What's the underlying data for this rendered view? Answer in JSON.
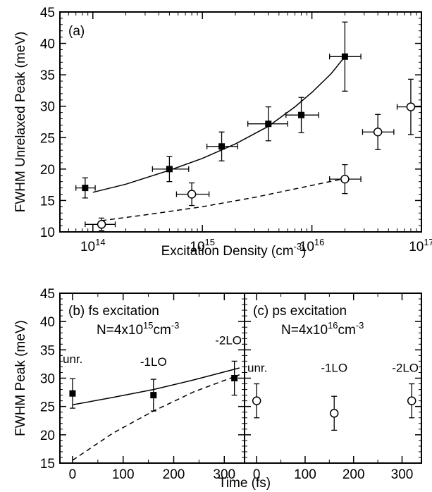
{
  "chart_data": [
    {
      "type": "scatter",
      "panel_label": "(a)",
      "xlabel": "Excitation Density (cm⁻³)",
      "ylabel": "FWHM Unrelaxed Peak (meV)",
      "xscale": "log",
      "xlim": [
        50000000000000.0,
        1e+17
      ],
      "ylim": [
        10,
        45
      ],
      "xticks": [
        {
          "value": 100000000000000.0,
          "base": "10",
          "exp": "14"
        },
        {
          "value": 1000000000000000.0,
          "base": "10",
          "exp": "15"
        },
        {
          "value": 1e+16,
          "base": "10",
          "exp": "16"
        },
        {
          "value": 1e+17,
          "base": "10",
          "exp": "17"
        }
      ],
      "yticks": [
        10,
        15,
        20,
        25,
        30,
        35,
        40,
        45
      ],
      "series": [
        {
          "marker": "filled-square",
          "points": [
            {
              "x": 85000000000000.0,
              "y": 17.0,
              "xerr": [
                70000000000000.0,
                105000000000000.0
              ],
              "yerr": 1.6
            },
            {
              "x": 500000000000000.0,
              "y": 20.0,
              "xerr": [
                350000000000000.0,
                750000000000000.0
              ],
              "yerr": 2.0
            },
            {
              "x": 1500000000000000.0,
              "y": 23.6,
              "xerr": [
                1100000000000000.0,
                2100000000000000.0
              ],
              "yerr": 2.3
            },
            {
              "x": 4000000000000000.0,
              "y": 27.2,
              "xerr": [
                2600000000000000.0,
                6000000000000000.0
              ],
              "yerr": 2.7
            },
            {
              "x": 8000000000000000.0,
              "y": 28.6,
              "xerr": [
                5800000000000000.0,
                1.15e+16
              ],
              "yerr": 2.8
            },
            {
              "x": 2e+16,
              "y": 37.9,
              "xerr": [
                1.45e+16,
                2.8e+16
              ],
              "yerr": 5.5
            }
          ]
        },
        {
          "marker": "open-circle",
          "points": [
            {
              "x": 120000000000000.0,
              "y": 11.2,
              "xerr": [
                85000000000000.0,
                160000000000000.0
              ],
              "yerr": 1.0
            },
            {
              "x": 800000000000000.0,
              "y": 16.0,
              "xerr": [
                580000000000000.0,
                1150000000000000.0
              ],
              "yerr": 1.8
            },
            {
              "x": 2e+16,
              "y": 18.4,
              "xerr": [
                1.45e+16,
                2.8e+16
              ],
              "yerr": 2.3
            },
            {
              "x": 4e+16,
              "y": 25.9,
              "xerr": [
                2.9e+16,
                5.6e+16
              ],
              "yerr": 2.8
            },
            {
              "x": 8e+16,
              "y": 29.9,
              "xerr": [
                6e+16,
                1e+17
              ],
              "yerr": 4.4
            }
          ]
        }
      ],
      "fits": [
        {
          "style": "solid",
          "x": [
            100000000000000.0,
            200000000000000.0,
            500000000000000.0,
            1000000000000000.0,
            2000000000000000.0,
            4000000000000000.0,
            7000000000000000.0,
            1e+16,
            1.5e+16,
            2e+16
          ],
          "y": [
            16.3,
            17.6,
            19.8,
            21.7,
            24.0,
            26.8,
            29.9,
            32.2,
            35.2,
            37.9
          ]
        },
        {
          "style": "dashed",
          "x": [
            120000000000000.0,
            300000000000000.0,
            1000000000000000.0,
            3000000000000000.0,
            1e+16,
            2e+16
          ],
          "y": [
            11.8,
            12.7,
            14.0,
            15.5,
            17.4,
            18.5
          ]
        }
      ]
    },
    {
      "type": "scatter",
      "panel_label": "(b) fs excitation",
      "density_text": {
        "pre": "N=4x10",
        "exp": "15",
        "post": "cm",
        "unit_exp": "-3"
      },
      "xlabel": "Time (fs)",
      "ylabel": "FWHM Peak (meV)",
      "xlim": [
        -25,
        340
      ],
      "ylim": [
        15,
        45
      ],
      "xticks": [
        0,
        100,
        200,
        300
      ],
      "yticks": [
        15,
        20,
        25,
        30,
        35,
        40,
        45
      ],
      "series": [
        {
          "marker": "filled-square",
          "points": [
            {
              "x": 0,
              "y": 27.3,
              "yerr": 2.6
            },
            {
              "x": 160,
              "y": 27.0,
              "yerr": 2.8
            },
            {
              "x": 320,
              "y": 30.0,
              "yerr": 3.0
            }
          ]
        }
      ],
      "point_labels": [
        {
          "text": "unr.",
          "x": 0,
          "y": 32.7
        },
        {
          "text": "-1LO",
          "x": 160,
          "y": 32.2
        },
        {
          "text": "-2LO",
          "x": 320,
          "y": 36.0
        }
      ],
      "fits": [
        {
          "style": "solid",
          "x": [
            0,
            80,
            160,
            240,
            330
          ],
          "y": [
            25.3,
            26.6,
            28.0,
            29.7,
            31.8
          ]
        },
        {
          "style": "dashed",
          "x": [
            0,
            80,
            160,
            240,
            330
          ],
          "y": [
            15.5,
            20.3,
            24.2,
            27.6,
            30.6
          ]
        }
      ]
    },
    {
      "type": "scatter",
      "panel_label": "(c) ps excitation",
      "density_text": {
        "pre": "N=4x10",
        "exp": "16",
        "post": "cm",
        "unit_exp": "-3"
      },
      "xlabel": "Time (fs)",
      "xlim": [
        -25,
        340
      ],
      "ylim": [
        15,
        45
      ],
      "xticks": [
        0,
        100,
        200,
        300
      ],
      "series": [
        {
          "marker": "open-circle",
          "points": [
            {
              "x": 0,
              "y": 26.0,
              "yerr": 3.0
            },
            {
              "x": 160,
              "y": 23.8,
              "yerr": 3.0
            },
            {
              "x": 320,
              "y": 26.0,
              "yerr": 3.0
            }
          ]
        }
      ],
      "point_labels": [
        {
          "text": "unr.",
          "x": 0,
          "y": 31.1
        },
        {
          "text": "-1LO",
          "x": 160,
          "y": 31.1
        },
        {
          "text": "-2LO",
          "x": 320,
          "y": 31.1
        }
      ]
    }
  ]
}
